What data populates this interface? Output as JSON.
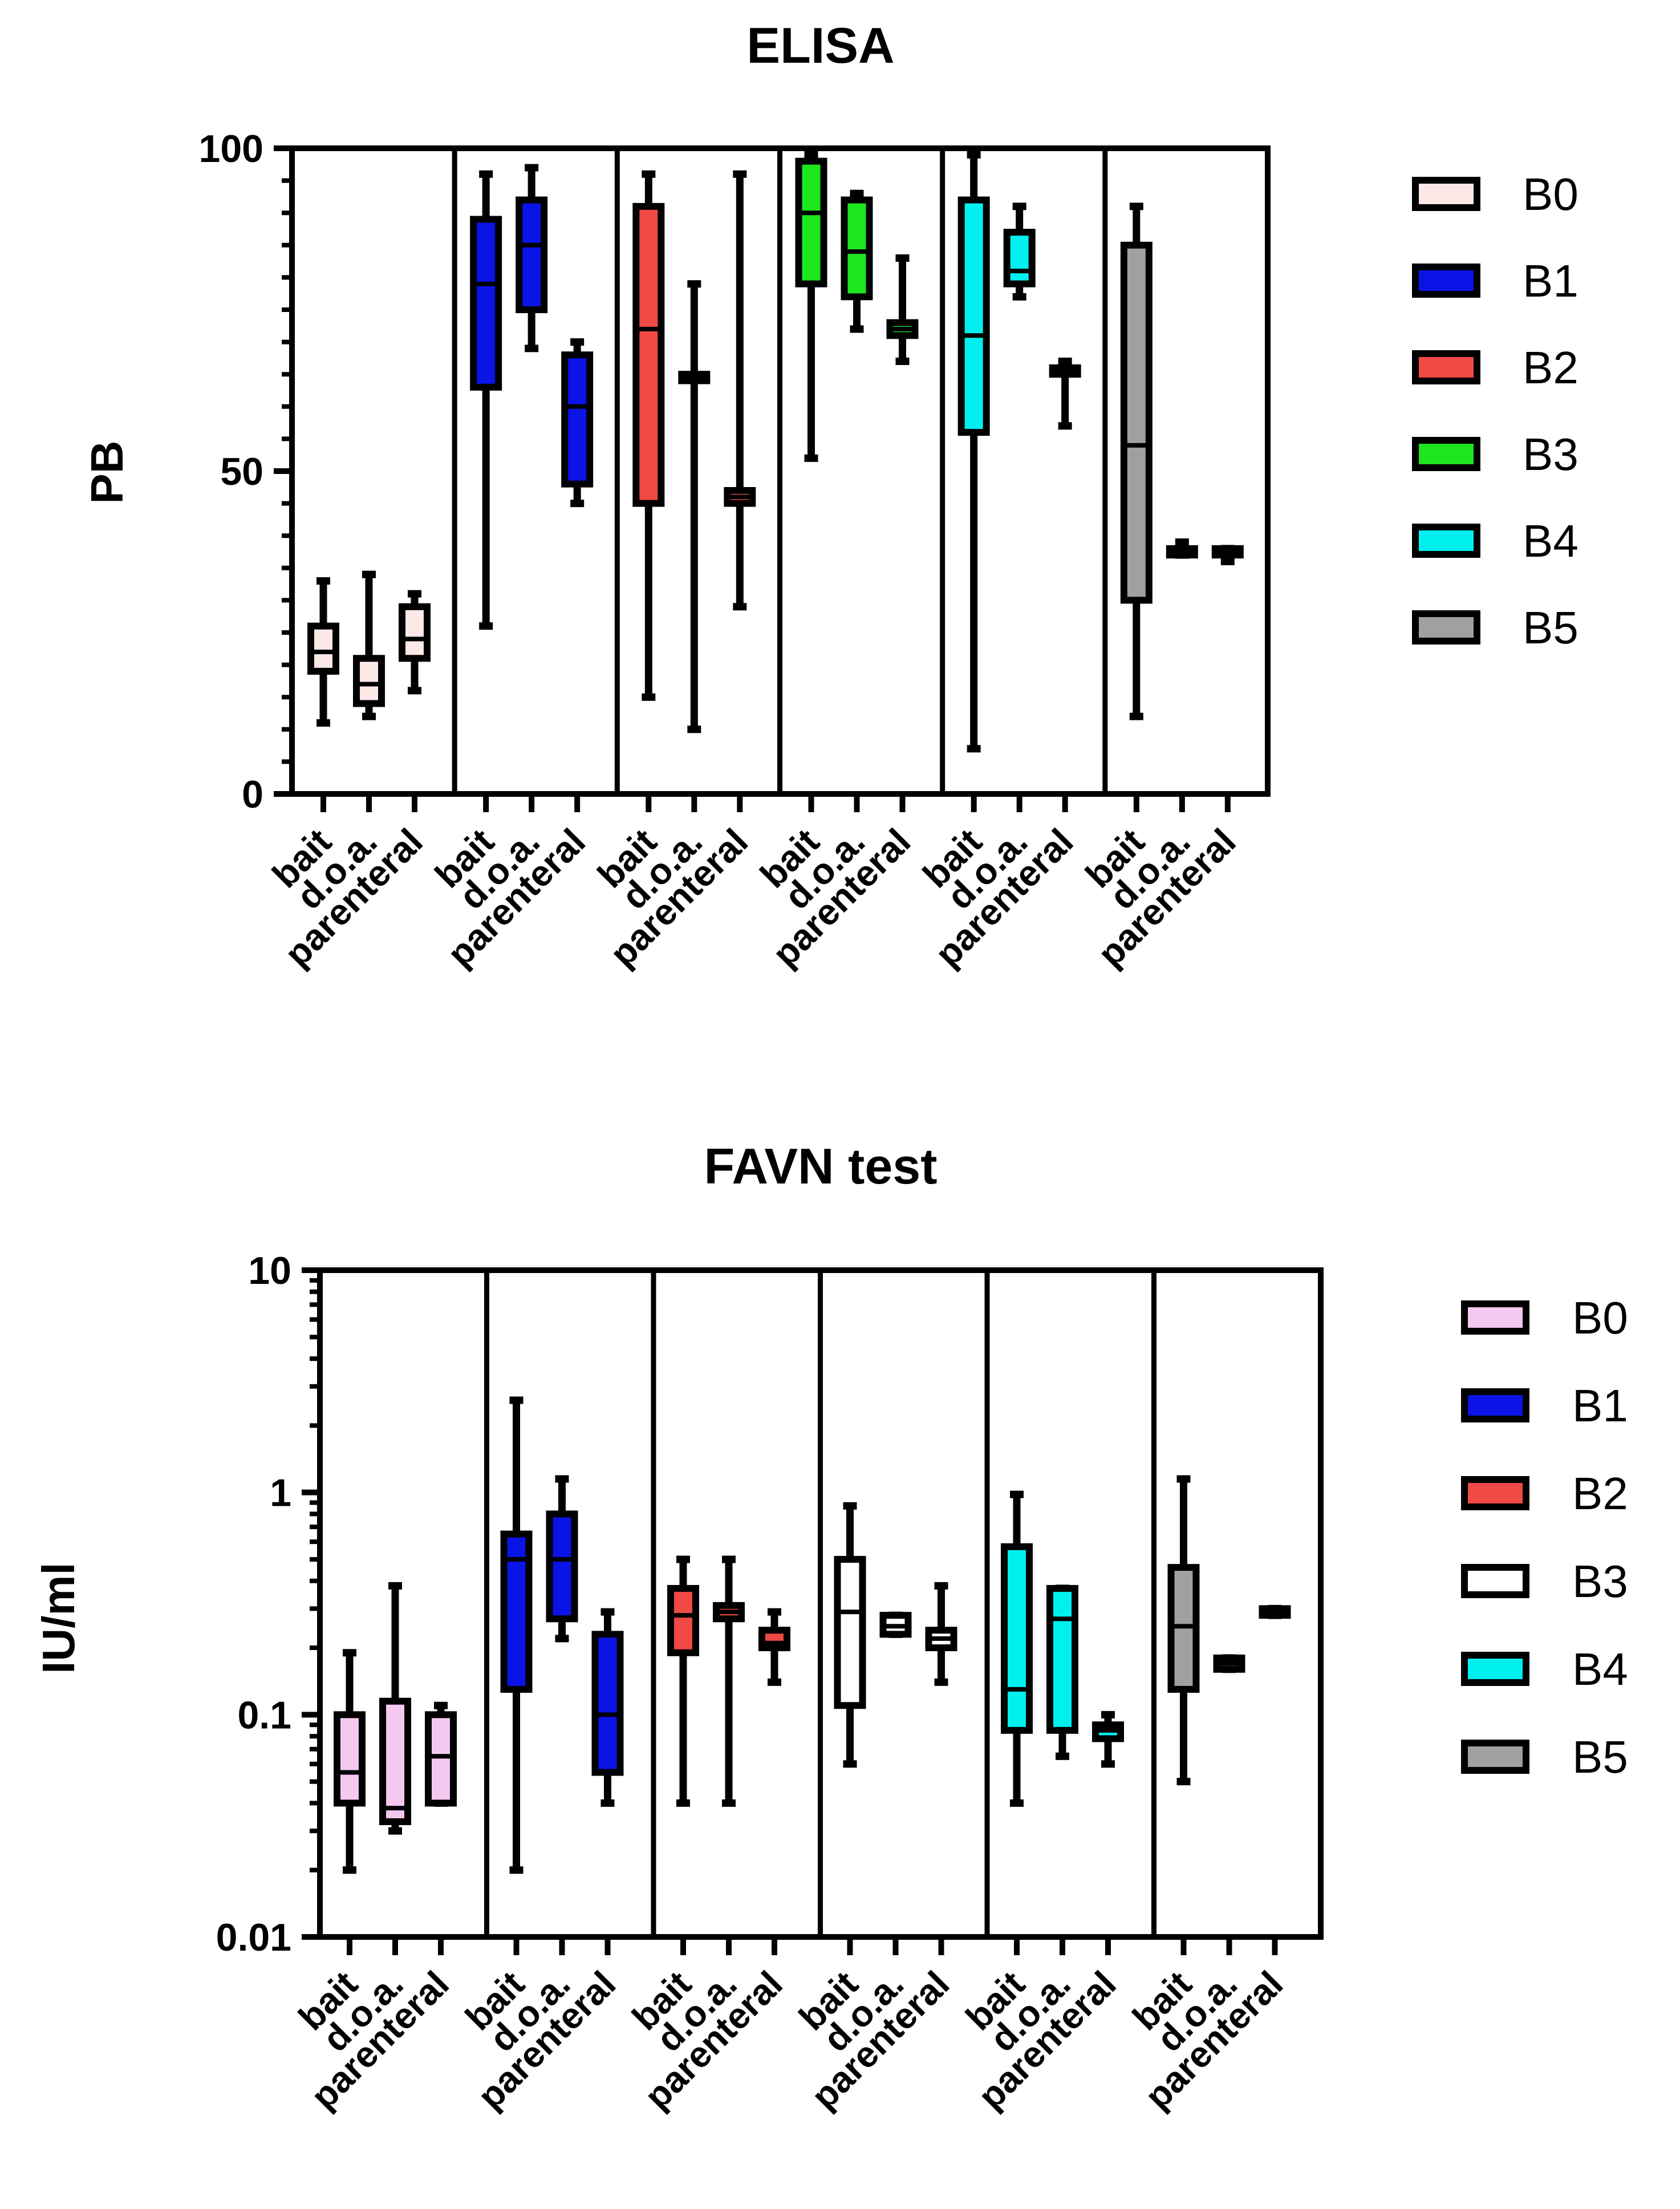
{
  "chart_data": [
    {
      "type": "box",
      "title": "ELISA",
      "ylabel": "PB",
      "scale": "linear",
      "ylim": [
        0,
        100
      ],
      "yticks": [
        "0",
        "50",
        "100"
      ],
      "ytick_values": [
        0,
        50,
        100
      ],
      "category_labels": [
        "bait",
        "d.o.a.",
        "parenteral"
      ],
      "legend": [
        {
          "name": "B0",
          "color": "#fde8e8"
        },
        {
          "name": "B1",
          "color": "#0a14e6"
        },
        {
          "name": "B2",
          "color": "#f04a44"
        },
        {
          "name": "B3",
          "color": "#1ee61e"
        },
        {
          "name": "B4",
          "color": "#00f0f0"
        },
        {
          "name": "B5",
          "color": "#a0a0a0"
        }
      ],
      "groups": [
        {
          "name": "B0",
          "color": "#fde8e8",
          "boxes": [
            {
              "category": "bait",
              "min": 11,
              "q1": 19,
              "median": 22,
              "q3": 26,
              "max": 33
            },
            {
              "category": "d.o.a.",
              "min": 12,
              "q1": 14,
              "median": 17,
              "q3": 21,
              "max": 34
            },
            {
              "category": "parenteral",
              "min": 16,
              "q1": 21,
              "median": 24,
              "q3": 29,
              "max": 31
            }
          ]
        },
        {
          "name": "B1",
          "color": "#0a14e6",
          "boxes": [
            {
              "category": "bait",
              "min": 26,
              "q1": 63,
              "median": 79,
              "q3": 89,
              "max": 96
            },
            {
              "category": "d.o.a.",
              "min": 69,
              "q1": 75,
              "median": 85,
              "q3": 92,
              "max": 97
            },
            {
              "category": "parenteral",
              "min": 45,
              "q1": 48,
              "median": 60,
              "q3": 68,
              "max": 70
            }
          ]
        },
        {
          "name": "B2",
          "color": "#f04a44",
          "boxes": [
            {
              "category": "bait",
              "min": 15,
              "q1": 45,
              "median": 72,
              "q3": 91,
              "max": 96
            },
            {
              "category": "d.o.a.",
              "min": 10,
              "q1": 64,
              "median": 65,
              "q3": 65,
              "max": 79
            },
            {
              "category": "parenteral",
              "min": 29,
              "q1": 45,
              "median": 46,
              "q3": 47,
              "max": 96
            }
          ]
        },
        {
          "name": "B3",
          "color": "#1ee61e",
          "boxes": [
            {
              "category": "bait",
              "min": 52,
              "q1": 79,
              "median": 90,
              "q3": 98,
              "max": 99
            },
            {
              "category": "d.o.a.",
              "min": 72,
              "q1": 77,
              "median": 84,
              "q3": 92,
              "max": 93
            },
            {
              "category": "parenteral",
              "min": 67,
              "q1": 71,
              "median": 72,
              "q3": 73,
              "max": 83
            }
          ]
        },
        {
          "name": "B4",
          "color": "#00f0f0",
          "boxes": [
            {
              "category": "bait",
              "min": 7,
              "q1": 56,
              "median": 71,
              "q3": 92,
              "max": 99
            },
            {
              "category": "d.o.a.",
              "min": 77,
              "q1": 79,
              "median": 81,
              "q3": 87,
              "max": 91
            },
            {
              "category": "parenteral",
              "min": 57,
              "q1": 65,
              "median": 66,
              "q3": 66,
              "max": 67
            }
          ]
        },
        {
          "name": "B5",
          "color": "#a0a0a0",
          "boxes": [
            {
              "category": "bait",
              "min": 12,
              "q1": 30,
              "median": 54,
              "q3": 85,
              "max": 91
            },
            {
              "category": "d.o.a.",
              "min": 37,
              "q1": 37,
              "median": 38,
              "q3": 38,
              "max": 39
            },
            {
              "category": "parenteral",
              "min": 36,
              "q1": 37,
              "median": 37,
              "q3": 38,
              "max": 38
            }
          ]
        }
      ]
    },
    {
      "type": "box",
      "title": "FAVN test",
      "ylabel": "IU/ml",
      "scale": "log",
      "ylim": [
        0.01,
        10
      ],
      "yticks": [
        "0.01",
        "0.1",
        "1",
        "10"
      ],
      "ytick_values": [
        0.01,
        0.1,
        1,
        10
      ],
      "category_labels": [
        "bait",
        "d.o.a.",
        "parenteral"
      ],
      "legend": [
        {
          "name": "B0",
          "color": "#f5c8f0"
        },
        {
          "name": "B1",
          "color": "#0a14e6"
        },
        {
          "name": "B2",
          "color": "#f04a44"
        },
        {
          "name": "B3",
          "color": "#ffffff"
        },
        {
          "name": "B4",
          "color": "#00f0f0"
        },
        {
          "name": "B5",
          "color": "#a0a0a0"
        }
      ],
      "groups": [
        {
          "name": "B0",
          "color": "#f5c8f0",
          "boxes": [
            {
              "category": "bait",
              "min": 0.02,
              "q1": 0.04,
              "median": 0.055,
              "q3": 0.1,
              "max": 0.19
            },
            {
              "category": "d.o.a.",
              "min": 0.03,
              "q1": 0.033,
              "median": 0.038,
              "q3": 0.115,
              "max": 0.38
            },
            {
              "category": "parenteral",
              "min": 0.04,
              "q1": 0.04,
              "median": 0.065,
              "q3": 0.1,
              "max": 0.11
            }
          ]
        },
        {
          "name": "B1",
          "color": "#0a14e6",
          "boxes": [
            {
              "category": "bait",
              "min": 0.02,
              "q1": 0.13,
              "median": 0.5,
              "q3": 0.65,
              "max": 2.6
            },
            {
              "category": "d.o.a.",
              "min": 0.22,
              "q1": 0.27,
              "median": 0.5,
              "q3": 0.8,
              "max": 1.15
            },
            {
              "category": "parenteral",
              "min": 0.04,
              "q1": 0.055,
              "median": 0.1,
              "q3": 0.23,
              "max": 0.29
            }
          ]
        },
        {
          "name": "B2",
          "color": "#f04a44",
          "boxes": [
            {
              "category": "bait",
              "min": 0.04,
              "q1": 0.19,
              "median": 0.28,
              "q3": 0.37,
              "max": 0.5
            },
            {
              "category": "d.o.a.",
              "min": 0.04,
              "q1": 0.27,
              "median": 0.29,
              "q3": 0.31,
              "max": 0.5
            },
            {
              "category": "parenteral",
              "min": 0.14,
              "q1": 0.2,
              "median": 0.21,
              "q3": 0.24,
              "max": 0.29
            }
          ]
        },
        {
          "name": "B3",
          "color": "#ffffff",
          "boxes": [
            {
              "category": "bait",
              "min": 0.06,
              "q1": 0.11,
              "median": 0.29,
              "q3": 0.5,
              "max": 0.87
            },
            {
              "category": "d.o.a.",
              "min": 0.23,
              "q1": 0.23,
              "median": 0.25,
              "q3": 0.28,
              "max": 0.28
            },
            {
              "category": "parenteral",
              "min": 0.14,
              "q1": 0.2,
              "median": 0.22,
              "q3": 0.24,
              "max": 0.38
            }
          ]
        },
        {
          "name": "B4",
          "color": "#00f0f0",
          "boxes": [
            {
              "category": "bait",
              "min": 0.04,
              "q1": 0.085,
              "median": 0.13,
              "q3": 0.57,
              "max": 0.98
            },
            {
              "category": "d.o.a.",
              "min": 0.065,
              "q1": 0.085,
              "median": 0.27,
              "q3": 0.37,
              "max": 0.37
            },
            {
              "category": "parenteral",
              "min": 0.06,
              "q1": 0.078,
              "median": 0.085,
              "q3": 0.09,
              "max": 0.1
            }
          ]
        },
        {
          "name": "B5",
          "color": "#a0a0a0",
          "boxes": [
            {
              "category": "bait",
              "min": 0.05,
              "q1": 0.13,
              "median": 0.25,
              "q3": 0.46,
              "max": 1.15
            },
            {
              "category": "d.o.a.",
              "min": 0.16,
              "q1": 0.16,
              "median": 0.17,
              "q3": 0.18,
              "max": 0.18
            },
            {
              "category": "parenteral",
              "min": 0.28,
              "q1": 0.28,
              "median": 0.29,
              "q3": 0.3,
              "max": 0.3
            }
          ]
        }
      ]
    }
  ]
}
